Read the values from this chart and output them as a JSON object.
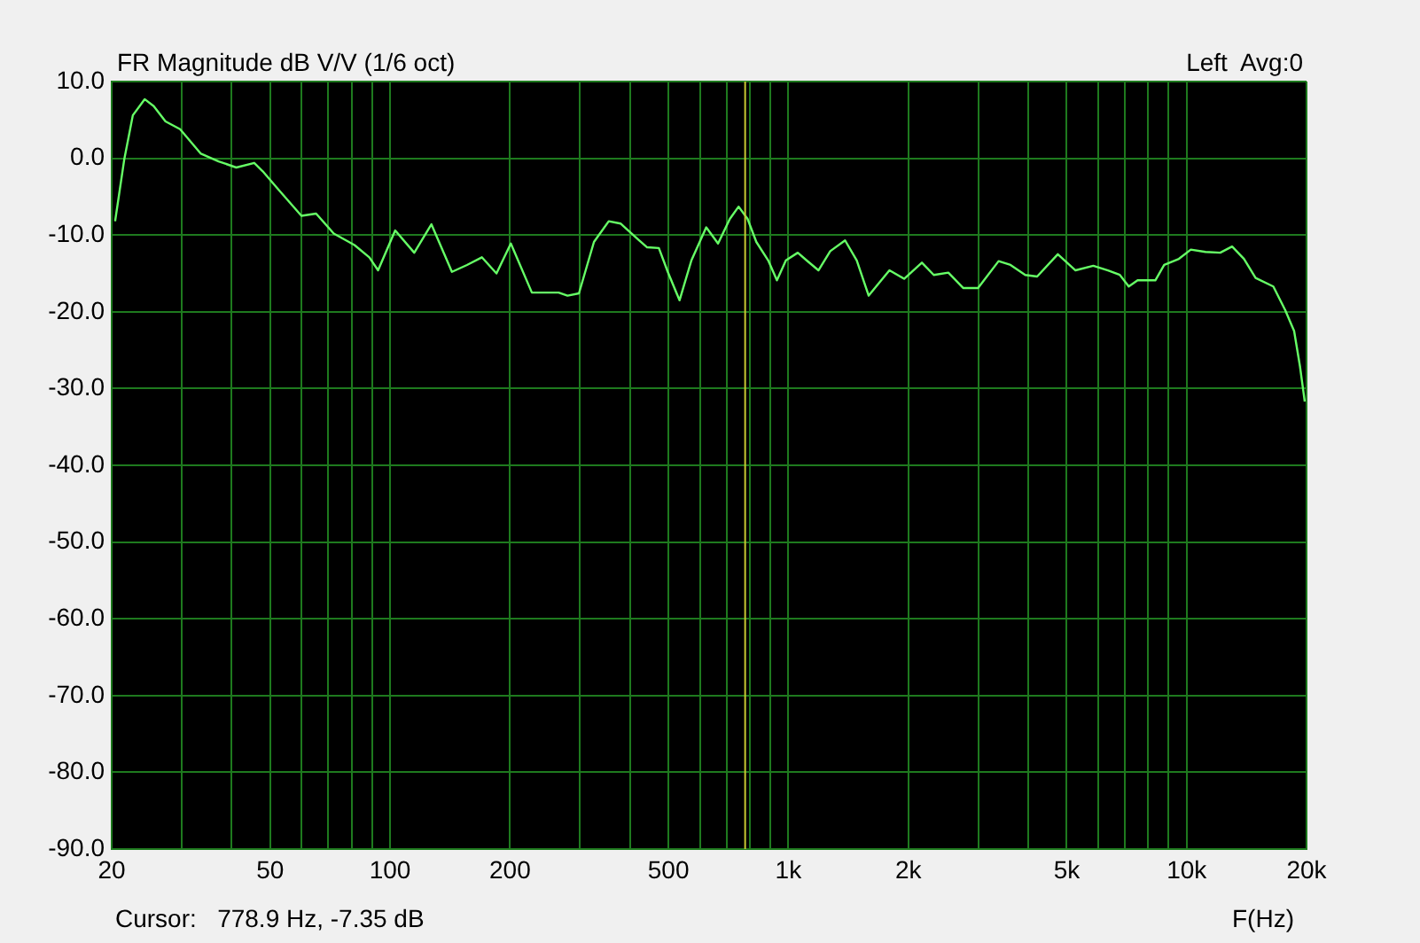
{
  "chart_data": {
    "type": "line",
    "title": "FR Magnitude dB V/V (1/6 oct)",
    "subtitle": "Left  Avg:0",
    "xlabel": "F(Hz)",
    "annotations": [
      "Cursor:   778.9 Hz, -7.35 dB"
    ],
    "log": "x",
    "grid": true,
    "marker": "none",
    "line_style": "solid",
    "xlim": [
      20,
      20000
    ],
    "xticks": [
      {
        "value": 20,
        "label": "20"
      },
      {
        "value": 30,
        "label": null
      },
      {
        "value": 40,
        "label": null
      },
      {
        "value": 50,
        "label": "50"
      },
      {
        "value": 60,
        "label": null
      },
      {
        "value": 70,
        "label": null
      },
      {
        "value": 80,
        "label": null
      },
      {
        "value": 90,
        "label": null
      },
      {
        "value": 100,
        "label": "100"
      },
      {
        "value": 200,
        "label": "200"
      },
      {
        "value": 300,
        "label": null
      },
      {
        "value": 400,
        "label": null
      },
      {
        "value": 500,
        "label": "500"
      },
      {
        "value": 600,
        "label": null
      },
      {
        "value": 700,
        "label": null
      },
      {
        "value": 800,
        "label": null
      },
      {
        "value": 900,
        "label": null
      },
      {
        "value": 1000,
        "label": "1k"
      },
      {
        "value": 2000,
        "label": "2k"
      },
      {
        "value": 3000,
        "label": null
      },
      {
        "value": 4000,
        "label": null
      },
      {
        "value": 5000,
        "label": "5k"
      },
      {
        "value": 6000,
        "label": null
      },
      {
        "value": 7000,
        "label": null
      },
      {
        "value": 8000,
        "label": null
      },
      {
        "value": 9000,
        "label": null
      },
      {
        "value": 10000,
        "label": "10k"
      },
      {
        "value": 20000,
        "label": "20k"
      }
    ],
    "ylim": [
      -90,
      10
    ],
    "yticks": [
      {
        "value": 10,
        "label": "10.0"
      },
      {
        "value": 0,
        "label": "0.0"
      },
      {
        "value": -10,
        "label": "-10.0"
      },
      {
        "value": -20,
        "label": "-20.0"
      },
      {
        "value": -30,
        "label": "-30.0"
      },
      {
        "value": -40,
        "label": "-40.0"
      },
      {
        "value": -50,
        "label": "-50.0"
      },
      {
        "value": -60,
        "label": "-60.0"
      },
      {
        "value": -70,
        "label": "-70.0"
      },
      {
        "value": -80,
        "label": "-80.0"
      },
      {
        "value": -90,
        "label": "-90.0"
      }
    ],
    "ref_lines": [
      {
        "axis": "x",
        "value": 778.9,
        "color": "#c8c832"
      }
    ],
    "series": [
      {
        "color": "#66ff66",
        "x": [
          20.4,
          21.5,
          22.6,
          24.2,
          25.5,
          27.3,
          29.7,
          33.5,
          37.1,
          41.1,
          45.6,
          47.9,
          52.3,
          59.9,
          65.2,
          72.2,
          81.4,
          88.7,
          93.3,
          103,
          115,
          127,
          143,
          156,
          170,
          185,
          201,
          227,
          243,
          265,
          279,
          298,
          325,
          354,
          379,
          420,
          442,
          473,
          498,
          533,
          571,
          622,
          666,
          713,
          750,
          790,
          831,
          890,
          936,
          986,
          1056,
          1111,
          1190,
          1274,
          1388,
          1485,
          1591,
          1794,
          1953,
          2164,
          2318,
          2522,
          2747,
          2994,
          3372,
          3613,
          3933,
          4213,
          4748,
          5260,
          5828,
          6346,
          6797,
          7155,
          7531,
          8344,
          8782,
          9563,
          10243,
          11150,
          12142,
          13006,
          13930,
          14900,
          16506,
          17684,
          18614,
          19254,
          19794
        ],
        "values": [
          -8.2,
          -0.2,
          5.6,
          7.7,
          6.8,
          4.8,
          3.8,
          0.6,
          -0.4,
          -1.2,
          -0.6,
          -1.7,
          -4.0,
          -7.5,
          -7.2,
          -9.8,
          -11.3,
          -12.9,
          -14.6,
          -9.4,
          -12.3,
          -8.6,
          -14.8,
          -13.9,
          -12.9,
          -15.0,
          -11.1,
          -17.5,
          -17.5,
          -17.5,
          -17.9,
          -17.6,
          -10.9,
          -8.2,
          -8.5,
          -10.6,
          -11.6,
          -11.7,
          -14.8,
          -18.5,
          -13.3,
          -9.0,
          -11.1,
          -7.9,
          -6.3,
          -7.9,
          -10.9,
          -13.3,
          -15.9,
          -13.3,
          -12.3,
          -13.3,
          -14.6,
          -12.1,
          -10.7,
          -13.3,
          -17.9,
          -14.6,
          -15.7,
          -13.6,
          -15.2,
          -14.9,
          -16.9,
          -16.9,
          -13.4,
          -13.9,
          -15.2,
          -15.4,
          -12.5,
          -14.6,
          -14.0,
          -14.6,
          -15.2,
          -16.7,
          -15.9,
          -15.9,
          -13.9,
          -13.1,
          -11.9,
          -12.2,
          -12.3,
          -11.5,
          -13.1,
          -15.6,
          -16.7,
          -19.8,
          -22.5,
          -27.1,
          -31.7
        ]
      }
    ]
  }
}
